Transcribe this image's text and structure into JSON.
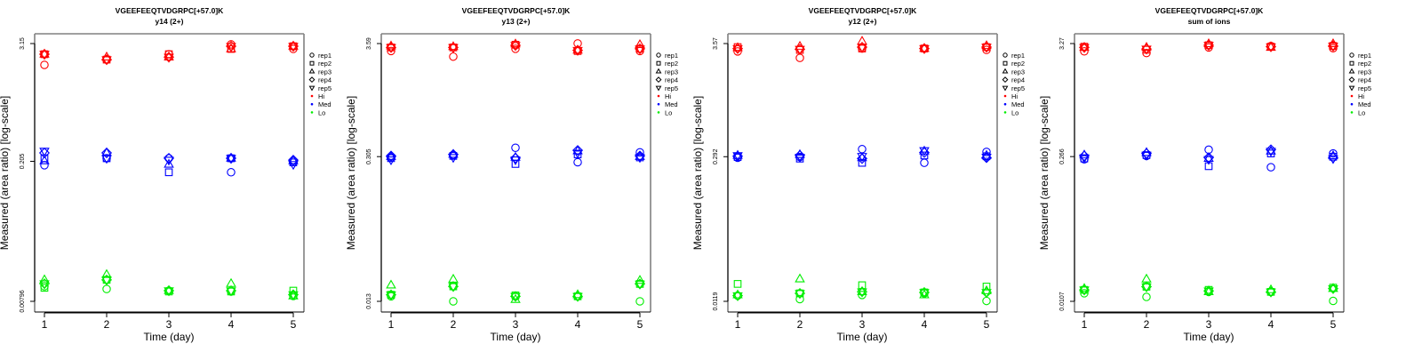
{
  "figure": {
    "legend": {
      "shape_entries": [
        {
          "label": "rep1",
          "marker": "circle"
        },
        {
          "label": "rep2",
          "marker": "square"
        },
        {
          "label": "rep3",
          "marker": "triangle-up"
        },
        {
          "label": "rep4",
          "marker": "diamond"
        },
        {
          "label": "rep5",
          "marker": "triangle-down"
        }
      ],
      "color_entries": [
        {
          "label": "Hi",
          "color": "#ff0000"
        },
        {
          "label": "Med",
          "color": "#0000ff"
        },
        {
          "label": "Lo",
          "color": "#00ee00"
        }
      ],
      "placement": "right"
    }
  },
  "chart_data": [
    {
      "type": "scatter",
      "title": "VGEEFEEQTVDGRPC[+57.0]K",
      "subtitle": "y14 (2+)",
      "xlabel": "Time (day)",
      "ylabel": "Measured (area ratio) [log-scale]",
      "yscale": "log",
      "x_ticks": [
        "1",
        "2",
        "3",
        "4",
        "5"
      ],
      "y_ticks": [
        "0.00796",
        "0.205",
        "3.15"
      ],
      "y_tick_values": [
        0.00796,
        0.205,
        3.15
      ],
      "grid": false,
      "x": [
        1,
        2,
        3,
        4,
        5
      ],
      "series": [
        {
          "level": "Hi",
          "rep": "rep1",
          "values": [
            1.92,
            2.17,
            2.46,
            3.09,
            2.78
          ]
        },
        {
          "level": "Hi",
          "rep": "rep2",
          "values": [
            2.46,
            2.17,
            2.46,
            2.78,
            2.96
          ]
        },
        {
          "level": "Hi",
          "rep": "rep3",
          "values": [
            2.46,
            2.3,
            2.3,
            2.78,
            2.96
          ]
        },
        {
          "level": "Hi",
          "rep": "rep4",
          "values": [
            2.46,
            2.17,
            2.3,
            2.96,
            2.96
          ]
        },
        {
          "level": "Hi",
          "rep": "rep5",
          "values": [
            2.46,
            2.17,
            2.3,
            2.96,
            2.96
          ]
        },
        {
          "level": "Med",
          "rep": "rep1",
          "values": [
            0.187,
            0.22,
            0.22,
            0.159,
            0.207
          ]
        },
        {
          "level": "Med",
          "rep": "rep2",
          "values": [
            0.22,
            0.22,
            0.159,
            0.22,
            0.2
          ]
        },
        {
          "level": "Med",
          "rep": "rep3",
          "values": [
            0.207,
            0.249,
            0.191,
            0.22,
            0.207
          ]
        },
        {
          "level": "Med",
          "rep": "rep4",
          "values": [
            0.249,
            0.249,
            0.22,
            0.22,
            0.211
          ]
        },
        {
          "level": "Med",
          "rep": "rep5",
          "values": [
            0.26,
            0.22,
            0.211,
            0.22,
            0.191
          ]
        },
        {
          "level": "Lo",
          "rep": "rep1",
          "values": [
            0.0113,
            0.0106,
            0.0102,
            0.01,
            0.009
          ]
        },
        {
          "level": "Lo",
          "rep": "rep2",
          "values": [
            0.0109,
            0.0131,
            0.01,
            0.01,
            0.0102
          ]
        },
        {
          "level": "Lo",
          "rep": "rep3",
          "values": [
            0.0131,
            0.0148,
            0.0102,
            0.012,
            0.009
          ]
        },
        {
          "level": "Lo",
          "rep": "rep4",
          "values": [
            0.012,
            0.0131,
            0.0102,
            0.0102,
            0.0093
          ]
        },
        {
          "level": "Lo",
          "rep": "rep5",
          "values": [
            0.012,
            0.0131,
            0.0102,
            0.0102,
            0.0093
          ]
        }
      ]
    },
    {
      "type": "scatter",
      "title": "VGEEFEEQTVDGRPC[+57.0]K",
      "subtitle": "y13 (2+)",
      "xlabel": "Time (day)",
      "ylabel": "Measured (area ratio) [log-scale]",
      "yscale": "log",
      "x_ticks": [
        "1",
        "2",
        "3",
        "4",
        "5"
      ],
      "y_ticks": [
        "0.013",
        "0.305",
        "3.59"
      ],
      "y_tick_values": [
        0.013,
        0.305,
        3.59
      ],
      "grid": false,
      "x": [
        1,
        2,
        3,
        4,
        5
      ],
      "series": [
        {
          "level": "Hi",
          "rep": "rep1",
          "values": [
            3.05,
            2.7,
            3.2,
            3.6,
            3.05
          ]
        },
        {
          "level": "Hi",
          "rep": "rep2",
          "values": [
            3.3,
            3.3,
            3.5,
            3.05,
            3.2
          ]
        },
        {
          "level": "Hi",
          "rep": "rep3",
          "values": [
            3.4,
            3.35,
            3.55,
            3.1,
            3.5
          ]
        },
        {
          "level": "Hi",
          "rep": "rep4",
          "values": [
            3.3,
            3.3,
            3.45,
            3.1,
            3.2
          ]
        },
        {
          "level": "Hi",
          "rep": "rep5",
          "values": [
            3.3,
            3.3,
            3.45,
            3.1,
            3.2
          ]
        },
        {
          "level": "Med",
          "rep": "rep1",
          "values": [
            0.3,
            0.315,
            0.37,
            0.27,
            0.335
          ]
        },
        {
          "level": "Med",
          "rep": "rep2",
          "values": [
            0.295,
            0.31,
            0.26,
            0.32,
            0.3
          ]
        },
        {
          "level": "Med",
          "rep": "rep3",
          "values": [
            0.305,
            0.32,
            0.3,
            0.345,
            0.305
          ]
        },
        {
          "level": "Med",
          "rep": "rep4",
          "values": [
            0.31,
            0.32,
            0.295,
            0.35,
            0.31
          ]
        },
        {
          "level": "Med",
          "rep": "rep5",
          "values": [
            0.285,
            0.3,
            0.285,
            0.33,
            0.3
          ]
        },
        {
          "level": "Lo",
          "rep": "rep1",
          "values": [
            0.0145,
            0.013,
            0.0145,
            0.0145,
            0.013
          ]
        },
        {
          "level": "Lo",
          "rep": "rep2",
          "values": [
            0.015,
            0.018,
            0.0148,
            0.0145,
            0.019
          ]
        },
        {
          "level": "Lo",
          "rep": "rep3",
          "values": [
            0.0185,
            0.021,
            0.0135,
            0.015,
            0.0205
          ]
        },
        {
          "level": "Lo",
          "rep": "rep4",
          "values": [
            0.015,
            0.018,
            0.0145,
            0.0145,
            0.019
          ]
        },
        {
          "level": "Lo",
          "rep": "rep5",
          "values": [
            0.015,
            0.018,
            0.0145,
            0.0145,
            0.019
          ]
        }
      ]
    },
    {
      "type": "scatter",
      "title": "VGEEFEEQTVDGRPC[+57.0]K",
      "subtitle": "y12 (2+)",
      "xlabel": "Time (day)",
      "ylabel": "Measured (area ratio) [log-scale]",
      "yscale": "log",
      "x_ticks": [
        "1",
        "2",
        "3",
        "4",
        "5"
      ],
      "y_ticks": [
        "0.0119",
        "0.292",
        "3.57"
      ],
      "y_tick_values": [
        0.0119,
        0.292,
        3.57
      ],
      "grid": false,
      "x": [
        1,
        2,
        3,
        4,
        5
      ],
      "series": [
        {
          "level": "Hi",
          "rep": "rep1",
          "values": [
            3.0,
            2.6,
            3.2,
            3.2,
            3.1
          ]
        },
        {
          "level": "Hi",
          "rep": "rep2",
          "values": [
            3.3,
            3.1,
            3.2,
            3.2,
            3.3
          ]
        },
        {
          "level": "Hi",
          "rep": "rep3",
          "values": [
            3.25,
            3.35,
            3.75,
            3.2,
            3.4
          ]
        },
        {
          "level": "Hi",
          "rep": "rep4",
          "values": [
            3.2,
            3.15,
            3.3,
            3.2,
            3.3
          ]
        },
        {
          "level": "Hi",
          "rep": "rep5",
          "values": [
            3.2,
            3.15,
            3.3,
            3.2,
            3.3
          ]
        },
        {
          "level": "Med",
          "rep": "rep1",
          "values": [
            0.285,
            0.29,
            0.345,
            0.255,
            0.325
          ]
        },
        {
          "level": "Med",
          "rep": "rep2",
          "values": [
            0.29,
            0.28,
            0.255,
            0.3,
            0.295
          ]
        },
        {
          "level": "Med",
          "rep": "rep3",
          "values": [
            0.3,
            0.305,
            0.285,
            0.33,
            0.3
          ]
        },
        {
          "level": "Med",
          "rep": "rep4",
          "values": [
            0.295,
            0.3,
            0.28,
            0.32,
            0.285
          ]
        },
        {
          "level": "Med",
          "rep": "rep5",
          "values": [
            0.3,
            0.29,
            0.295,
            0.335,
            0.29
          ]
        },
        {
          "level": "Lo",
          "rep": "rep1",
          "values": [
            0.0135,
            0.0125,
            0.0137,
            0.0142,
            0.012
          ]
        },
        {
          "level": "Lo",
          "rep": "rep2",
          "values": [
            0.0175,
            0.0142,
            0.017,
            0.0145,
            0.0165
          ]
        },
        {
          "level": "Lo",
          "rep": "rep3",
          "values": [
            0.0137,
            0.0195,
            0.0147,
            0.0137,
            0.015
          ]
        },
        {
          "level": "Lo",
          "rep": "rep4",
          "values": [
            0.0135,
            0.0142,
            0.0147,
            0.0145,
            0.0145
          ]
        },
        {
          "level": "Lo",
          "rep": "rep5",
          "values": [
            0.0135,
            0.0142,
            0.0147,
            0.0145,
            0.0145
          ]
        }
      ]
    },
    {
      "type": "scatter",
      "title": "VGEEFEEQTVDGRPC[+57.0]K",
      "subtitle": "sum of ions",
      "xlabel": "Time (day)",
      "ylabel": "Measured (area ratio) [log-scale]",
      "yscale": "log",
      "x_ticks": [
        "1",
        "2",
        "3",
        "4",
        "5"
      ],
      "y_ticks": [
        "0.0107",
        "0.266",
        "3.27"
      ],
      "y_tick_values": [
        0.0107,
        0.266,
        3.27
      ],
      "grid": false,
      "x": [
        1,
        2,
        3,
        4,
        5
      ],
      "series": [
        {
          "level": "Hi",
          "rep": "rep1",
          "values": [
            2.75,
            2.65,
            3.0,
            3.1,
            2.95
          ]
        },
        {
          "level": "Hi",
          "rep": "rep2",
          "values": [
            3.05,
            2.85,
            3.15,
            3.05,
            3.1
          ]
        },
        {
          "level": "Hi",
          "rep": "rep3",
          "values": [
            3.0,
            3.0,
            3.25,
            3.0,
            3.25
          ]
        },
        {
          "level": "Hi",
          "rep": "rep4",
          "values": [
            3.0,
            2.9,
            3.15,
            3.05,
            3.1
          ]
        },
        {
          "level": "Hi",
          "rep": "rep5",
          "values": [
            3.0,
            2.9,
            3.15,
            3.05,
            3.1
          ]
        },
        {
          "level": "Med",
          "rep": "rep1",
          "values": [
            0.25,
            0.27,
            0.31,
            0.21,
            0.285
          ]
        },
        {
          "level": "Med",
          "rep": "rep2",
          "values": [
            0.255,
            0.275,
            0.215,
            0.285,
            0.265
          ]
        },
        {
          "level": "Med",
          "rep": "rep3",
          "values": [
            0.275,
            0.29,
            0.255,
            0.3,
            0.27
          ]
        },
        {
          "level": "Med",
          "rep": "rep4",
          "values": [
            0.27,
            0.285,
            0.26,
            0.31,
            0.26
          ]
        },
        {
          "level": "Med",
          "rep": "rep5",
          "values": [
            0.26,
            0.275,
            0.25,
            0.3,
            0.255
          ]
        },
        {
          "level": "Lo",
          "rep": "rep1",
          "values": [
            0.0128,
            0.0118,
            0.0132,
            0.0132,
            0.0108
          ]
        },
        {
          "level": "Lo",
          "rep": "rep2",
          "values": [
            0.0138,
            0.0148,
            0.0138,
            0.0132,
            0.0145
          ]
        },
        {
          "level": "Lo",
          "rep": "rep3",
          "values": [
            0.0142,
            0.0175,
            0.0132,
            0.0138,
            0.0142
          ]
        },
        {
          "level": "Lo",
          "rep": "rep4",
          "values": [
            0.0138,
            0.0148,
            0.0135,
            0.0132,
            0.0142
          ]
        },
        {
          "level": "Lo",
          "rep": "rep5",
          "values": [
            0.0138,
            0.0148,
            0.0135,
            0.0132,
            0.0142
          ]
        }
      ]
    }
  ]
}
